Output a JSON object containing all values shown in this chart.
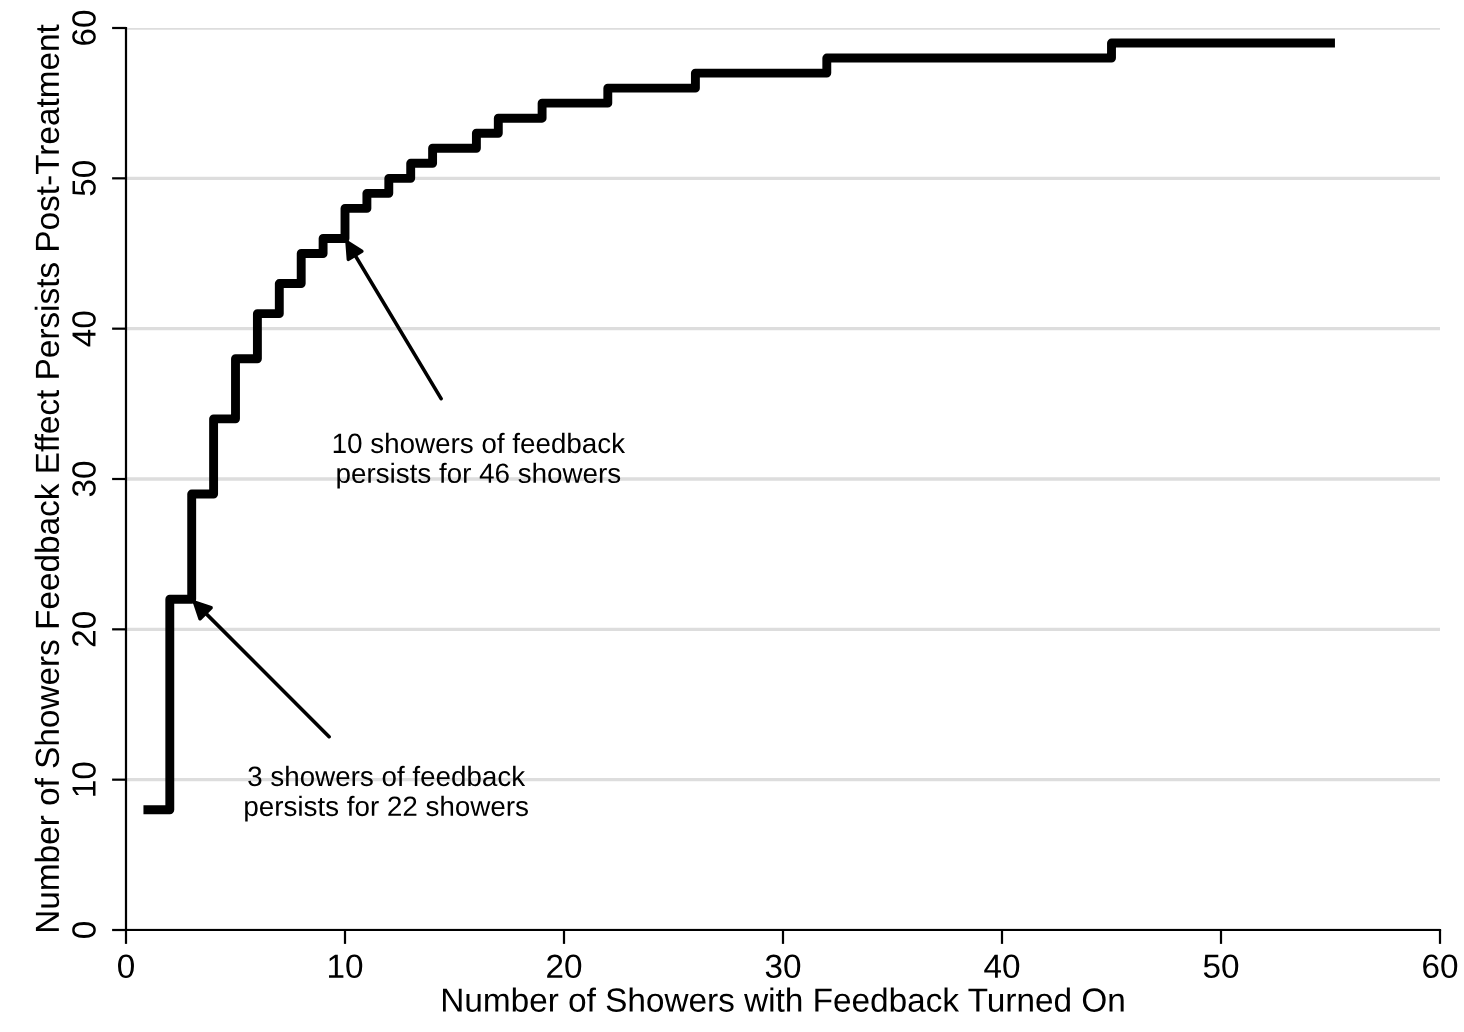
{
  "chart_data": {
    "type": "step",
    "xlabel": "Number of Showers with Feedback Turned On",
    "ylabel": "Number of Showers Feedback Effect Persists Post-Treatment",
    "series": [
      {
        "color": "#000000",
        "x": [
          1,
          2,
          3,
          4,
          5,
          6,
          7,
          8,
          9,
          10,
          11,
          12,
          13,
          14,
          16,
          17,
          19,
          22,
          26,
          32,
          45,
          55
        ],
        "values": [
          8,
          22,
          29,
          34,
          38,
          41,
          43,
          45,
          46,
          48,
          49,
          50,
          51,
          52,
          53,
          54,
          55,
          56,
          57,
          58,
          59,
          59
        ]
      }
    ],
    "xlim": [
      0,
      60
    ],
    "ylim": [
      0,
      60
    ],
    "xticks": [
      0,
      10,
      20,
      30,
      40,
      50,
      60
    ],
    "yticks": [
      0,
      10,
      20,
      30,
      40,
      50,
      60
    ],
    "grid": "y",
    "legend": false,
    "annotations": [
      {
        "text": "10 showers of feedback\npersists for 46 showers",
        "x": 10,
        "y": 46
      },
      {
        "text": "3 showers of feedback\npersists for 22 showers",
        "x": 3,
        "y": 22
      }
    ]
  }
}
